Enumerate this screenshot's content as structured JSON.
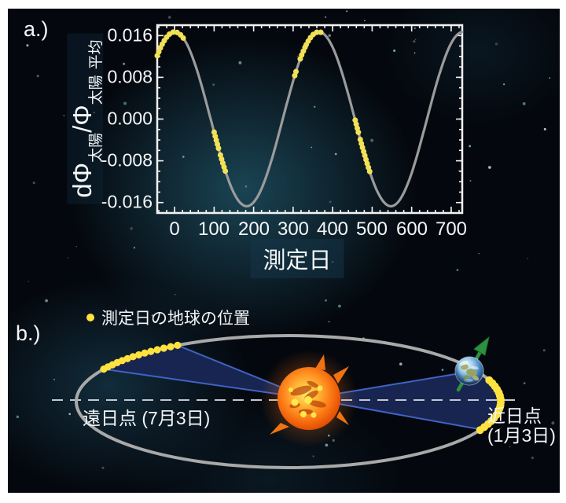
{
  "figure": {
    "background_color": "#04070d",
    "glow_color": "#2c7690",
    "frame_color": "#ffffff"
  },
  "panel_a": {
    "label": "a.)",
    "ylabel": {
      "part1": "dΦ",
      "sub1": "太陽",
      "part2": "/Φ",
      "sub2": "太陽",
      "sub3": "平均"
    }
  },
  "chart_data": {
    "type": "line",
    "title": "",
    "xlabel": "測定日",
    "ylabel": "dΦ太陽/Φ太陽 平均",
    "x_range": [
      -44,
      728
    ],
    "y_range": [
      -0.018,
      0.018
    ],
    "xticks": [
      0,
      100,
      200,
      300,
      400,
      500,
      600,
      700
    ],
    "xtick_labels": [
      "0",
      "100",
      "200",
      "300",
      "400",
      "500",
      "600",
      "700"
    ],
    "x_minor_step": 20,
    "yticks": [
      0.016,
      0.008,
      0.0,
      -0.008,
      -0.016
    ],
    "ytick_labels": [
      "0.016",
      "0.008",
      "0.000",
      "-0.008",
      "-0.016"
    ],
    "y_minor_step": 0.002,
    "grid": false,
    "axis_color": "#f2f2f2",
    "series": [
      {
        "model": "cosine",
        "amplitude": 0.0167,
        "period_days": 365,
        "peak_day": 0,
        "color": "#9b9b9b"
      }
    ],
    "highlight": {
      "color": "#f2e156",
      "segments_days": [
        [
          -44,
          22
        ],
        [
          100,
          112
        ],
        [
          116,
          130
        ],
        [
          304,
          310
        ],
        [
          318,
          330
        ],
        [
          333,
          373
        ],
        [
          457,
          468
        ],
        [
          470,
          497
        ]
      ]
    }
  },
  "panel_b": {
    "label": "b.)",
    "legend": {
      "marker_color": "#ffe23e",
      "label": "測定日の地球の位置"
    },
    "aphelion_label": "遠日点 (7月3日)",
    "perihelion_label_line1": "近日点",
    "perihelion_label_line2": "(1月3日)",
    "orbit_color": "#a9a9a9",
    "wedge_fill": "#182550",
    "wedge_edge_color": "#3f63c4",
    "dashed_line_color": "#c2c8cf",
    "marker_color": "#ffe23e",
    "arrow_color": "#2c9141"
  }
}
